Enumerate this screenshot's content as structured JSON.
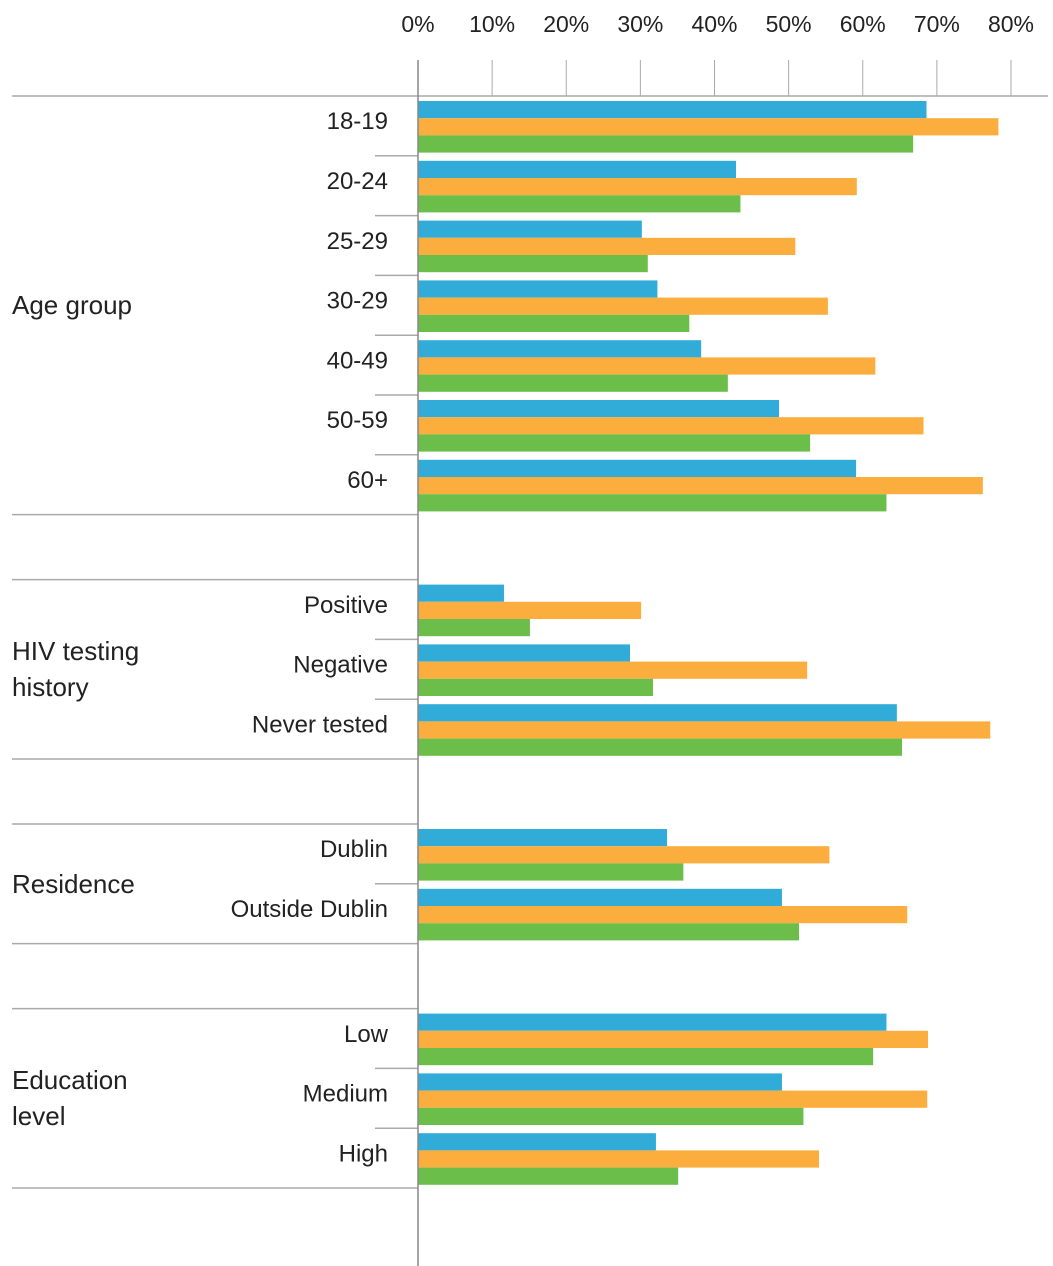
{
  "chart_data": {
    "type": "bar",
    "orientation": "horizontal",
    "xlim": [
      0,
      80
    ],
    "xticks": [
      {
        "value": 0,
        "label": "0%"
      },
      {
        "value": 10,
        "label": "10%"
      },
      {
        "value": 20,
        "label": "20%"
      },
      {
        "value": 30,
        "label": "30%"
      },
      {
        "value": 40,
        "label": "40%"
      },
      {
        "value": 50,
        "label": "50%"
      },
      {
        "value": 60,
        "label": "60%"
      },
      {
        "value": 70,
        "label": "70%"
      },
      {
        "value": 80,
        "label": "80%"
      }
    ],
    "grid": true,
    "groups": [
      {
        "label": "Age group",
        "categories": [
          "18-19",
          "20-24",
          "25-29",
          "30-29",
          "40-49",
          "50-59",
          "60+"
        ]
      },
      {
        "label": "HIV testing history",
        "categories": [
          "Positive",
          "Negative",
          "Never tested"
        ]
      },
      {
        "label": "Residence",
        "categories": [
          "Dublin",
          "Outside Dublin"
        ]
      },
      {
        "label": "Education level",
        "categories": [
          "Low",
          "Medium",
          "High"
        ]
      }
    ],
    "series": [
      {
        "color": "#31acd9",
        "values": [
          68.6,
          42.9,
          30.2,
          32.3,
          38.2,
          48.7,
          59.1,
          11.6,
          28.6,
          64.6,
          33.6,
          49.1,
          63.2,
          49.1,
          32.1
        ]
      },
      {
        "color": "#fbad3d",
        "values": [
          78.3,
          59.2,
          50.9,
          55.3,
          61.7,
          68.2,
          76.2,
          30.1,
          52.5,
          77.2,
          55.5,
          66.0,
          68.8,
          68.7,
          54.1
        ]
      },
      {
        "color": "#6cbe4b",
        "values": [
          66.8,
          43.5,
          31.0,
          36.6,
          41.8,
          52.9,
          63.2,
          15.1,
          31.7,
          65.3,
          35.8,
          51.4,
          61.4,
          52.0,
          35.1
        ]
      }
    ]
  }
}
